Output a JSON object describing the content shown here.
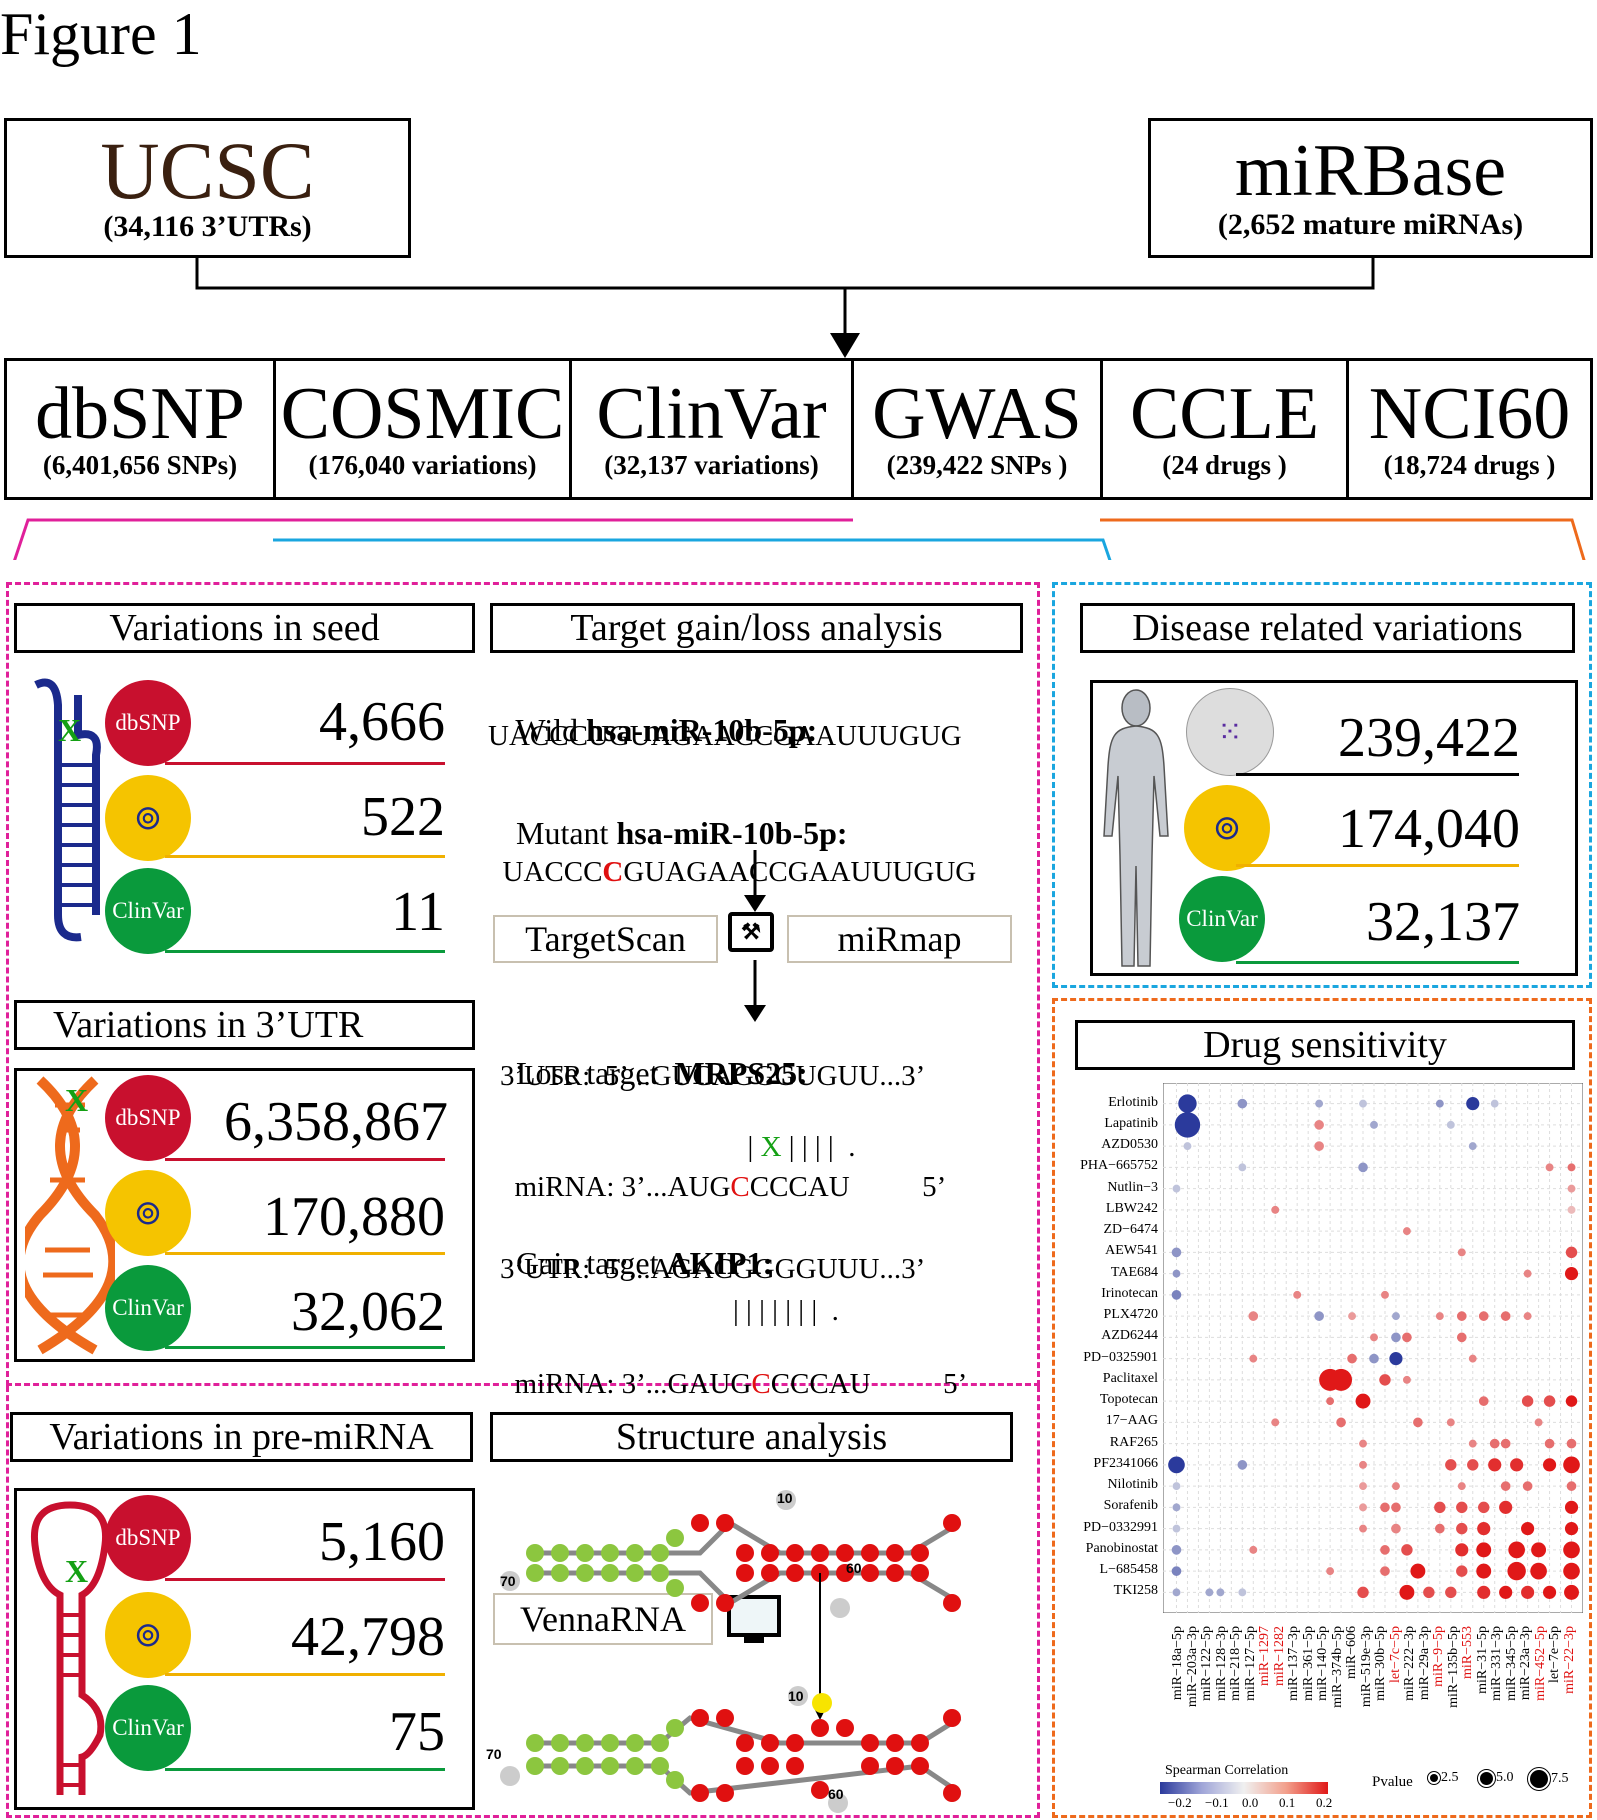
{
  "figure_title": "Figure 1",
  "sources": {
    "ucsc": {
      "name": "UCSC",
      "detail": "(34,116 3’UTRs)"
    },
    "mirbase": {
      "name": "miRBase",
      "detail": "(2,652 mature miRNAs)"
    }
  },
  "databases": [
    {
      "name": "dbSNP",
      "detail": "(6,401,656 SNPs)"
    },
    {
      "name": "COSMIC",
      "detail": "(176,040  variations)"
    },
    {
      "name": "ClinVar",
      "detail": "(32,137 variations)"
    },
    {
      "name": "GWAS",
      "detail": "(239,422 SNPs )"
    },
    {
      "name": "CCLE",
      "detail": "(24 drugs )"
    },
    {
      "name": "NCI60",
      "detail": "(18,724 drugs )"
    }
  ],
  "seed": {
    "title": "Variations in seed",
    "dbsnp": "4,666",
    "cosmic": "522",
    "clinvar": "11"
  },
  "utr": {
    "title": "Variations in 3’UTR",
    "dbsnp": "6,358,867",
    "cosmic": "170,880",
    "clinvar": "32,062"
  },
  "premirna": {
    "title": "Variations in pre-miRNA",
    "dbsnp": "5,160",
    "cosmic": "42,798",
    "clinvar": "75"
  },
  "disease": {
    "title": "Disease related variations",
    "gwas": "239,422",
    "cosmic": "174,040",
    "clinvar": "32,137"
  },
  "labels": {
    "dbsnp": "dbSNP",
    "clinvar": "ClinVar",
    "cosmic": "COSMIC",
    "mark_x": "X"
  },
  "target": {
    "title": "Target gain/loss analysis",
    "wild_prefix": "Wild ",
    "wild_name": "hsa-miR-10b-5p:",
    "wild_seq": "UACCCUGUAGAACCGAAUUUGUG",
    "mutant_prefix": "Mutant ",
    "mutant_name": "hsa-miR-10b-5p:",
    "mutant_seq_a": "UACCC",
    "mutant_seq_b": "C",
    "mutant_seq_c": "GUAGAACCGAAUUUGUG",
    "tool1": "TargetScan",
    "tool2": "miRmap",
    "lose_prefix": "Lose target  ",
    "lose_name": "MRPS25:",
    "lose_utr": "3’UTR:  5’...GUCAGGGUGUU...3’",
    "lose_pair_a": "|",
    "lose_pair_x": "X",
    "lose_pair_b": "| | | |  .",
    "lose_mirna_a": "miRNA: 3’...AUG",
    "lose_mirna_b": "C",
    "lose_mirna_c": "CCCAU          5’",
    "gain_prefix": "Gain target ",
    "gain_name": "AKIP1:",
    "gain_utr": "3’UTR:  5’...AGACGGGGUUU...3’",
    "gain_pair": "| | | | | | |  .",
    "gain_mirna_a": "miRNA: 3’...GAUG",
    "gain_mirna_b": "C",
    "gain_mirna_c": "CCCAU          5’"
  },
  "structure": {
    "title": "Structure analysis",
    "tool": "VennaRNA",
    "pos10": "10",
    "pos60": "60",
    "pos70": "70"
  },
  "drug": {
    "title": "Drug sensitivity",
    "legend_corr_title": "Spearman Correlation",
    "legend_corr_ticks": [
      "−0.2",
      "−0.1",
      "0.0",
      "0.1",
      "0.2"
    ],
    "legend_p_title": "Pvalue",
    "legend_p_ticks": [
      "2.5",
      "5.0",
      "7.5"
    ]
  },
  "chart_data": {
    "type": "heatmap",
    "rows": [
      "Erlotinib",
      "Lapatinib",
      "AZD0530",
      "PHA−665752",
      "Nutlin−3",
      "LBW242",
      "ZD−6474",
      "AEW541",
      "TAE684",
      "Irinotecan",
      "PLX4720",
      "AZD6244",
      "PD−0325901",
      "Paclitaxel",
      "Topotecan",
      "17−AAG",
      "RAF265",
      "PF2341066",
      "Nilotinib",
      "Sorafenib",
      "PD−0332991",
      "Panobinostat",
      "L−685458",
      "TKI258"
    ],
    "columns": [
      "miR−18a−5p",
      "miR−203a−3p",
      "miR−122−5p",
      "miR−128−3p",
      "miR−218−5p",
      "miR−127−5p",
      "miR−1297",
      "miR−1282",
      "miR−137−3p",
      "miR−361−5p",
      "miR−140−5p",
      "miR−374b−5p",
      "miR−606",
      "miR−519e−3p",
      "miR−30b−5p",
      "let−7c−5p",
      "miR−222−3p",
      "miR−29a−3p",
      "miR−9−5p",
      "miR−135b−5p",
      "miR−553",
      "miR−31−5p",
      "miR−331−3p",
      "miR−345−5p",
      "miR−23a−3p",
      "miR−452−5p",
      "let−7e−5p",
      "miR−22−3p"
    ],
    "red_columns": [
      "miR−1297",
      "miR−1282",
      "let−7c−5p",
      "miR−9−5p",
      "miR−553",
      "miR−452−5p",
      "miR−22−3p"
    ],
    "value_range": [
      -0.2,
      0.2
    ],
    "points": [
      [
        0,
        1,
        -0.25,
        4
      ],
      [
        0,
        6,
        -0.1,
        1.5
      ],
      [
        0,
        13,
        -0.08,
        1
      ],
      [
        0,
        17,
        -0.05,
        1
      ],
      [
        0,
        24,
        -0.1,
        1
      ],
      [
        0,
        27,
        -0.2,
        2.5
      ],
      [
        0,
        29,
        -0.05,
        1
      ],
      [
        1,
        1,
        -0.35,
        6
      ],
      [
        1,
        13,
        0.1,
        1.5
      ],
      [
        1,
        18,
        -0.08,
        1
      ],
      [
        1,
        25,
        -0.05,
        1
      ],
      [
        2,
        1,
        -0.05,
        1
      ],
      [
        2,
        13,
        0.1,
        1.5
      ],
      [
        2,
        27,
        -0.08,
        1
      ],
      [
        3,
        17,
        -0.1,
        1.5
      ],
      [
        3,
        6,
        -0.05,
        1
      ],
      [
        3,
        34,
        0.1,
        1
      ],
      [
        3,
        36,
        0.12,
        1
      ],
      [
        4,
        0,
        -0.05,
        1
      ],
      [
        4,
        36,
        0.08,
        1
      ],
      [
        5,
        9,
        0.1,
        1
      ],
      [
        5,
        36,
        0.05,
        1
      ],
      [
        6,
        21,
        0.1,
        1
      ],
      [
        7,
        0,
        -0.1,
        1.5
      ],
      [
        7,
        26,
        0.1,
        1
      ],
      [
        7,
        36,
        0.15,
        2
      ],
      [
        8,
        0,
        -0.1,
        1
      ],
      [
        8,
        32,
        0.1,
        1
      ],
      [
        8,
        36,
        0.2,
        2.5
      ],
      [
        9,
        0,
        -0.12,
        1.5
      ],
      [
        9,
        11,
        0.1,
        1
      ],
      [
        9,
        19,
        0.1,
        1
      ],
      [
        10,
        7,
        0.1,
        1.5
      ],
      [
        10,
        13,
        -0.1,
        1.5
      ],
      [
        10,
        16,
        0.08,
        1
      ],
      [
        10,
        20,
        -0.08,
        1
      ],
      [
        10,
        24,
        0.1,
        1
      ],
      [
        10,
        26,
        0.12,
        1.5
      ],
      [
        10,
        28,
        0.12,
        1.5
      ],
      [
        10,
        30,
        0.12,
        1.5
      ],
      [
        10,
        32,
        0.1,
        1
      ],
      [
        11,
        18,
        0.1,
        1
      ],
      [
        11,
        20,
        -0.1,
        1.5
      ],
      [
        11,
        21,
        0.12,
        1.5
      ],
      [
        11,
        26,
        0.12,
        1.5
      ],
      [
        12,
        7,
        0.1,
        1
      ],
      [
        12,
        16,
        0.12,
        1.5
      ],
      [
        12,
        18,
        -0.1,
        1.5
      ],
      [
        12,
        20,
        -0.2,
        2.5
      ],
      [
        12,
        27,
        0.1,
        1
      ],
      [
        13,
        14,
        0.25,
        5
      ],
      [
        13,
        15,
        0.28,
        5
      ],
      [
        13,
        19,
        0.15,
        2
      ],
      [
        13,
        21,
        0.1,
        1
      ],
      [
        14,
        14,
        0.12,
        1
      ],
      [
        14,
        17,
        0.2,
        3
      ],
      [
        14,
        28,
        0.12,
        1.5
      ],
      [
        14,
        32,
        0.15,
        2
      ],
      [
        14,
        34,
        0.15,
        2
      ],
      [
        14,
        36,
        0.2,
        2
      ],
      [
        15,
        9,
        0.1,
        1
      ],
      [
        15,
        15,
        0.12,
        1.5
      ],
      [
        15,
        22,
        0.12,
        1.5
      ],
      [
        15,
        25,
        0.1,
        1
      ],
      [
        15,
        33,
        0.1,
        1
      ],
      [
        16,
        17,
        0.1,
        1
      ],
      [
        16,
        27,
        0.1,
        1
      ],
      [
        16,
        29,
        0.12,
        1.5
      ],
      [
        16,
        30,
        0.12,
        1.5
      ],
      [
        16,
        34,
        0.12,
        1.5
      ],
      [
        16,
        36,
        0.12,
        1.5
      ],
      [
        17,
        0,
        -0.25,
        3.5
      ],
      [
        17,
        6,
        -0.1,
        1.5
      ],
      [
        17,
        17,
        0.1,
        1
      ],
      [
        17,
        25,
        0.15,
        2
      ],
      [
        17,
        27,
        0.15,
        2
      ],
      [
        17,
        29,
        0.18,
        2.5
      ],
      [
        17,
        31,
        0.18,
        2.5
      ],
      [
        17,
        34,
        0.2,
        2.5
      ],
      [
        17,
        36,
        0.25,
        3.5
      ],
      [
        18,
        0,
        -0.05,
        1
      ],
      [
        18,
        17,
        0.08,
        1
      ],
      [
        18,
        20,
        0.1,
        1
      ],
      [
        18,
        26,
        0.1,
        1
      ],
      [
        18,
        30,
        0.12,
        1.5
      ],
      [
        18,
        32,
        0.12,
        1.5
      ],
      [
        18,
        36,
        0.12,
        1.5
      ],
      [
        19,
        0,
        -0.08,
        1
      ],
      [
        19,
        17,
        0.08,
        1
      ],
      [
        19,
        19,
        0.12,
        1.5
      ],
      [
        19,
        20,
        0.12,
        1.5
      ],
      [
        19,
        24,
        0.15,
        2
      ],
      [
        19,
        26,
        0.15,
        2
      ],
      [
        19,
        28,
        0.15,
        2
      ],
      [
        19,
        30,
        0.18,
        2.5
      ],
      [
        19,
        36,
        0.2,
        2.5
      ],
      [
        20,
        0,
        -0.05,
        1
      ],
      [
        20,
        17,
        0.1,
        1
      ],
      [
        20,
        20,
        0.1,
        1.5
      ],
      [
        20,
        24,
        0.12,
        1.5
      ],
      [
        20,
        26,
        0.15,
        2
      ],
      [
        20,
        28,
        0.18,
        2.5
      ],
      [
        20,
        32,
        0.2,
        2.5
      ],
      [
        20,
        36,
        0.2,
        2.5
      ],
      [
        21,
        0,
        -0.1,
        1.5
      ],
      [
        21,
        7,
        0.1,
        1
      ],
      [
        21,
        19,
        0.12,
        1.5
      ],
      [
        21,
        21,
        0.15,
        2
      ],
      [
        21,
        26,
        0.18,
        2.5
      ],
      [
        21,
        28,
        0.2,
        3
      ],
      [
        21,
        31,
        0.25,
        3.5
      ],
      [
        21,
        33,
        0.2,
        3
      ],
      [
        21,
        36,
        0.28,
        3.5
      ],
      [
        22,
        0,
        -0.12,
        1.5
      ],
      [
        22,
        14,
        0.1,
        1
      ],
      [
        22,
        19,
        0.12,
        1.5
      ],
      [
        22,
        22,
        0.2,
        3
      ],
      [
        22,
        26,
        0.15,
        2
      ],
      [
        22,
        28,
        0.2,
        3
      ],
      [
        22,
        31,
        0.25,
        4
      ],
      [
        22,
        33,
        0.25,
        3.5
      ],
      [
        22,
        36,
        0.28,
        3.5
      ],
      [
        23,
        0,
        -0.08,
        1
      ],
      [
        23,
        3,
        -0.08,
        1
      ],
      [
        23,
        4,
        -0.08,
        1
      ],
      [
        23,
        6,
        -0.05,
        1
      ],
      [
        23,
        17,
        0.15,
        2
      ],
      [
        23,
        21,
        0.2,
        3
      ],
      [
        23,
        23,
        0.15,
        2
      ],
      [
        23,
        25,
        0.15,
        2
      ],
      [
        23,
        28,
        0.18,
        2.5
      ],
      [
        23,
        30,
        0.2,
        2.5
      ],
      [
        23,
        32,
        0.18,
        2.5
      ],
      [
        23,
        34,
        0.2,
        2.5
      ],
      [
        23,
        36,
        0.22,
        3
      ]
    ]
  }
}
